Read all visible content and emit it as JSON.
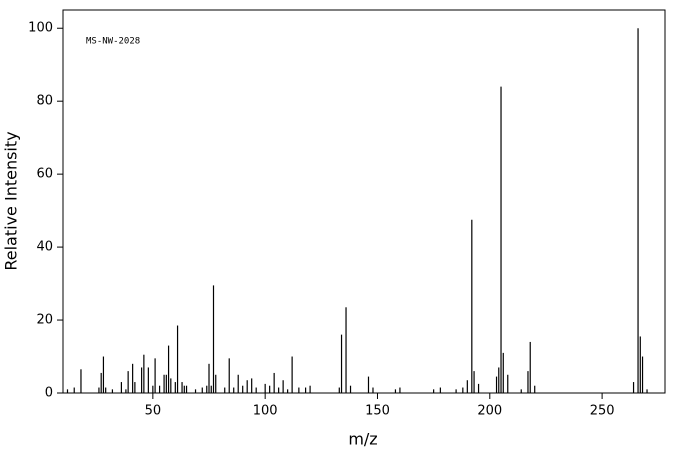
{
  "chart_data": {
    "type": "stick",
    "annotation": "MS-NW-2028",
    "xlabel": "m/z",
    "ylabel": "Relative Intensity",
    "x": [
      12,
      15,
      18,
      26,
      27,
      28,
      29,
      32,
      36,
      38,
      39,
      41,
      42,
      45,
      46,
      48,
      50,
      51,
      53,
      55,
      56,
      57,
      58,
      60,
      61,
      63,
      64,
      65,
      69,
      72,
      74,
      75,
      76,
      77,
      78,
      82,
      84,
      86,
      88,
      90,
      92,
      94,
      96,
      100,
      102,
      104,
      106,
      108,
      110,
      112,
      115,
      118,
      120,
      133,
      134,
      136,
      138,
      146,
      148,
      158,
      160,
      175,
      178,
      185,
      188,
      190,
      192,
      193,
      195,
      203,
      204,
      205,
      206,
      208,
      214,
      217,
      218,
      220,
      264,
      266,
      267,
      268,
      270
    ],
    "values": [
      1,
      1.5,
      6.5,
      1.5,
      5.5,
      10,
      1.5,
      1,
      3,
      1,
      6,
      8,
      3,
      7,
      10.5,
      7,
      2,
      9.5,
      2,
      5,
      5,
      13,
      4,
      3,
      18.5,
      3,
      2,
      2,
      1,
      1.5,
      2,
      8,
      2,
      29.5,
      5,
      1.5,
      9.5,
      1.5,
      5,
      2,
      3.5,
      4,
      1.5,
      2.5,
      2,
      5.5,
      1.5,
      3.5,
      1,
      10,
      1.5,
      1.5,
      2,
      1.5,
      16,
      23.5,
      2,
      4.5,
      1.5,
      1,
      1.5,
      1,
      1.5,
      1,
      1.5,
      3.5,
      47.5,
      6,
      2.5,
      4.5,
      7,
      84,
      11,
      5,
      1,
      6,
      14,
      2,
      3,
      100,
      15.5,
      10,
      1
    ],
    "color": "#000000",
    "xlim": [
      10,
      278
    ],
    "xticks": [
      50,
      100,
      150,
      200,
      250
    ],
    "ylim": [
      0,
      105
    ],
    "yticks": [
      0,
      20,
      40,
      60,
      80,
      100
    ]
  }
}
